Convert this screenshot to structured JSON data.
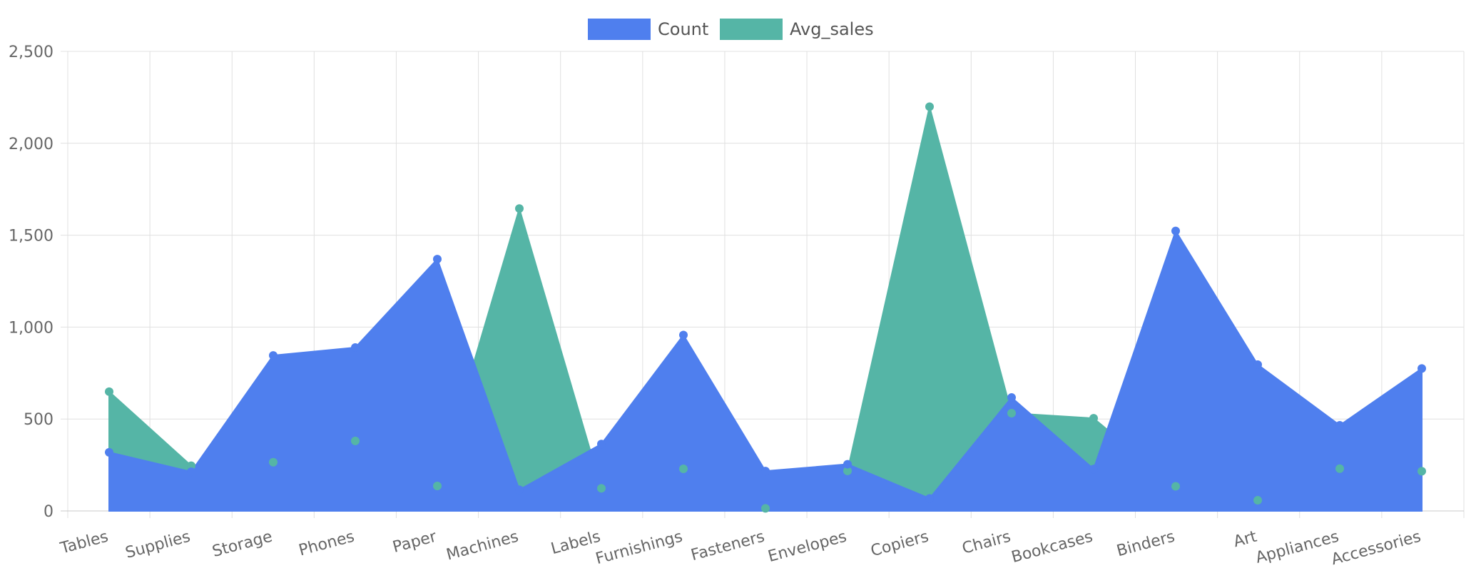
{
  "chart_data": {
    "type": "area",
    "categories": [
      "Tables",
      "Supplies",
      "Storage",
      "Phones",
      "Paper",
      "Machines",
      "Labels",
      "Furnishings",
      "Fasteners",
      "Envelopes",
      "Copiers",
      "Chairs",
      "Bookcases",
      "Binders",
      "Art",
      "Appliances",
      "Accessories"
    ],
    "series": [
      {
        "name": "Count",
        "color": "#4f7fee",
        "values": [
          319,
          213,
          846,
          889,
          1370,
          115,
          364,
          957,
          217,
          254,
          68,
          617,
          228,
          1523,
          796,
          466,
          775
        ]
      },
      {
        "name": "Avg_sales",
        "color": "#55b5a6",
        "values": [
          649,
          246,
          265,
          381,
          136,
          1645,
          123,
          229,
          14,
          218,
          2199,
          532,
          504,
          134,
          58,
          230,
          216
        ]
      }
    ],
    "ylim": [
      0,
      2500
    ],
    "yticks": [
      0,
      500,
      1000,
      1500,
      2000,
      2500
    ],
    "ytick_labels": [
      "0",
      "500",
      "1,000",
      "1,500",
      "2,000",
      "2,500"
    ],
    "grid": true,
    "legend": "top-center"
  }
}
